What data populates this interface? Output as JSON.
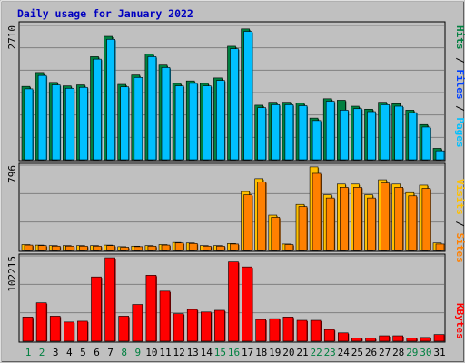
{
  "chart_data": {
    "type": "bar",
    "title": "Daily usage for January 2022",
    "categories": [
      "1",
      "2",
      "3",
      "4",
      "5",
      "6",
      "7",
      "8",
      "9",
      "10",
      "11",
      "12",
      "13",
      "14",
      "15",
      "16",
      "17",
      "18",
      "19",
      "20",
      "21",
      "22",
      "23",
      "24",
      "25",
      "26",
      "27",
      "28",
      "29",
      "30",
      "31"
    ],
    "weekend_days": [
      "1",
      "2",
      "8",
      "9",
      "15",
      "16",
      "22",
      "23",
      "29",
      "30"
    ],
    "panels": [
      {
        "name": "hits-files-pages",
        "ymax_label": "2710",
        "ylim": [
          0,
          2710
        ],
        "legend": [
          {
            "label": "Pages",
            "color": "#00c0ff"
          },
          {
            "label": "Files",
            "color": "#0040ff"
          },
          {
            "label": "Hits",
            "color": "#008040"
          }
        ],
        "series": [
          {
            "name": "Hits",
            "color": "#008040",
            "values": [
              1480,
              1760,
              1560,
              1490,
              1510,
              2080,
              2490,
              1520,
              1710,
              2130,
              1910,
              1540,
              1590,
              1540,
              1650,
              2290,
              2640,
              1100,
              1160,
              1160,
              1140,
              840,
              1230,
              1200,
              1080,
              1020,
              1160,
              1130,
              1000,
              710,
              230
            ]
          },
          {
            "name": "Pages",
            "color": "#00c0ff",
            "values": [
              1430,
              1700,
              1510,
              1440,
              1460,
              2030,
              2430,
              1470,
              1660,
              2080,
              1860,
              1490,
              1540,
              1490,
              1600,
              2240,
              2590,
              1050,
              1110,
              1110,
              1090,
              790,
              1180,
              1000,
              1030,
              970,
              1110,
              1080,
              950,
              660,
              180
            ]
          }
        ]
      },
      {
        "name": "visits-sites",
        "ymax_label": "796",
        "ylim": [
          0,
          796
        ],
        "legend": [
          {
            "label": "Sites",
            "color": "#ff8000"
          },
          {
            "label": "Visits",
            "color": "#ffc000"
          }
        ],
        "series": [
          {
            "name": "Visits",
            "color": "#ffc000",
            "values": [
              55,
              50,
              45,
              45,
              45,
              45,
              50,
              35,
              40,
              45,
              55,
              75,
              70,
              45,
              45,
              65,
              550,
              670,
              330,
              60,
              430,
              780,
              520,
              620,
              620,
              520,
              660,
              620,
              540,
              610,
              70
            ]
          },
          {
            "name": "Sites",
            "color": "#ff8000",
            "values": [
              50,
              45,
              40,
              40,
              40,
              40,
              45,
              30,
              35,
              40,
              50,
              70,
              65,
              40,
              40,
              60,
              520,
              640,
              310,
              55,
              410,
              720,
              490,
              590,
              590,
              490,
              630,
              590,
              510,
              580,
              60
            ]
          }
        ]
      },
      {
        "name": "kbytes",
        "ymax_label": "102215",
        "ylim": [
          0,
          102215
        ],
        "legend": [
          {
            "label": "KBytes",
            "color": "#ff0000"
          }
        ],
        "series": [
          {
            "name": "KBytes",
            "color": "#ff0000",
            "values": [
              29000,
              46000,
              30000,
              23000,
              24000,
              77000,
              100000,
              30000,
              44000,
              79000,
              60000,
              33000,
              38000,
              35000,
              37000,
              95000,
              89000,
              26000,
              27000,
              29000,
              25000,
              25000,
              14000,
              10000,
              4000,
              3500,
              6500,
              6500,
              4000,
              4500,
              8000
            ]
          }
        ]
      }
    ]
  }
}
